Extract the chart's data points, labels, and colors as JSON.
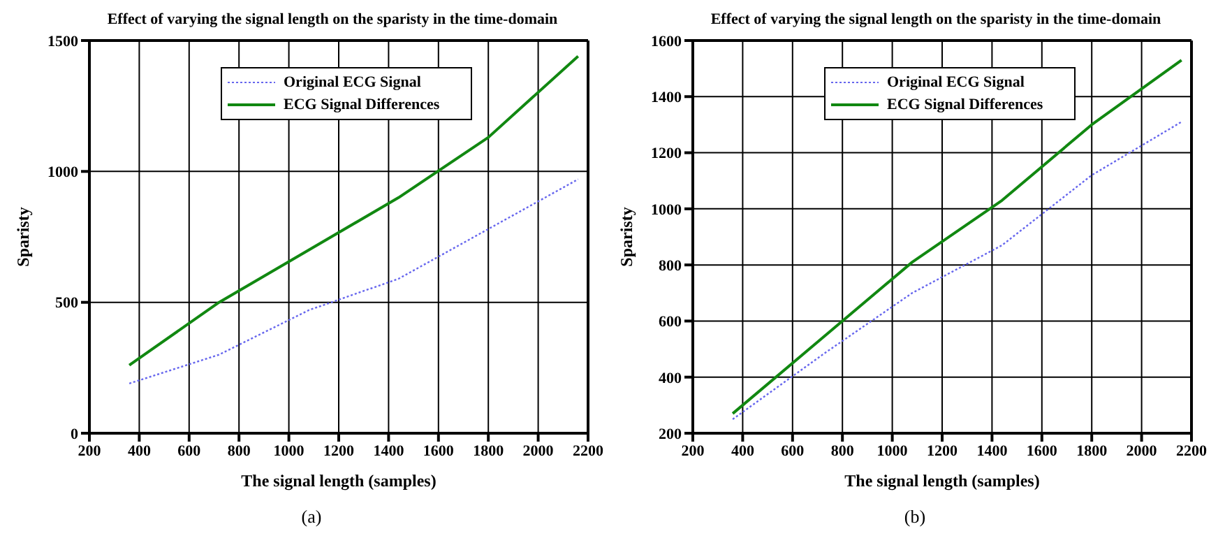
{
  "chart_data": [
    {
      "type": "line",
      "title": "Effect of varying the signal length on the sparisty in the time-domain",
      "xlabel": "The signal length (samples)",
      "ylabel": "Sparisty",
      "x": [
        360,
        720,
        1080,
        1440,
        1800,
        2160
      ],
      "series": [
        {
          "name": "Original ECG Signal",
          "color": "#6666ee",
          "line_style": "dotted",
          "values": [
            190,
            300,
            470,
            590,
            780,
            970
          ]
        },
        {
          "name": "ECG Signal Differences",
          "color": "#118811",
          "line_style": "solid",
          "values": [
            260,
            500,
            700,
            900,
            1130,
            1440
          ]
        }
      ],
      "xlim": [
        200,
        2200
      ],
      "xticks": [
        200,
        400,
        600,
        800,
        1000,
        1200,
        1400,
        1600,
        1800,
        2000,
        2200
      ],
      "ylim": [
        0,
        1500
      ],
      "yticks": [
        0,
        500,
        1000,
        1500
      ],
      "grid": true,
      "legend": "top",
      "marker": "none",
      "annotations": [
        "(a)"
      ]
    },
    {
      "type": "line",
      "title": "Effect of varying the signal length on the sparisty in the time-domain",
      "xlabel": "The signal length (samples)",
      "ylabel": "Sparisty",
      "x": [
        360,
        720,
        1080,
        1440,
        1800,
        2160
      ],
      "series": [
        {
          "name": "Original ECG Signal",
          "color": "#6666ee",
          "line_style": "dotted",
          "values": [
            250,
            480,
            700,
            870,
            1120,
            1310
          ]
        },
        {
          "name": "ECG Signal Differences",
          "color": "#118811",
          "line_style": "solid",
          "values": [
            270,
            540,
            810,
            1030,
            1300,
            1530
          ]
        }
      ],
      "xlim": [
        200,
        2200
      ],
      "xticks": [
        200,
        400,
        600,
        800,
        1000,
        1200,
        1400,
        1600,
        1800,
        2000,
        2200
      ],
      "ylim": [
        200,
        1600
      ],
      "yticks": [
        200,
        400,
        600,
        800,
        1000,
        1200,
        1400,
        1600
      ],
      "grid": true,
      "legend": "top",
      "marker": "none",
      "annotations": [
        "(b)"
      ]
    }
  ]
}
